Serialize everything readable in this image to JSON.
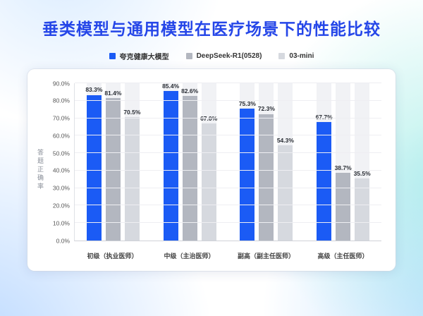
{
  "chart_data": {
    "type": "bar",
    "title": "垂类模型与通用模型在医疗场景下的性能比较",
    "ylabel": "答题正确率",
    "categories": [
      "初级（执业医师）",
      "中级（主治医师）",
      "副高（副主任医师）",
      "高级（主任医师）"
    ],
    "series": [
      {
        "name": "夸克健康大模型",
        "color": "#1B5BF5",
        "values": [
          83.3,
          85.4,
          75.3,
          67.7
        ]
      },
      {
        "name": "DeepSeek-R1(0528)",
        "color": "#B3B7C0",
        "values": [
          81.4,
          82.6,
          72.3,
          38.7
        ]
      },
      {
        "name": "03-mini",
        "color": "#D6D9DF",
        "values": [
          70.5,
          67.0,
          54.3,
          35.5
        ]
      }
    ],
    "ylim": [
      0,
      90
    ],
    "ytick_step": 10,
    "ytick_format": "percent-one-decimal",
    "value_label_format": "percent-one-decimal",
    "grid": true,
    "legend_position": "top",
    "track_color": "#F1F2F5",
    "title_color": "#2546E8"
  }
}
